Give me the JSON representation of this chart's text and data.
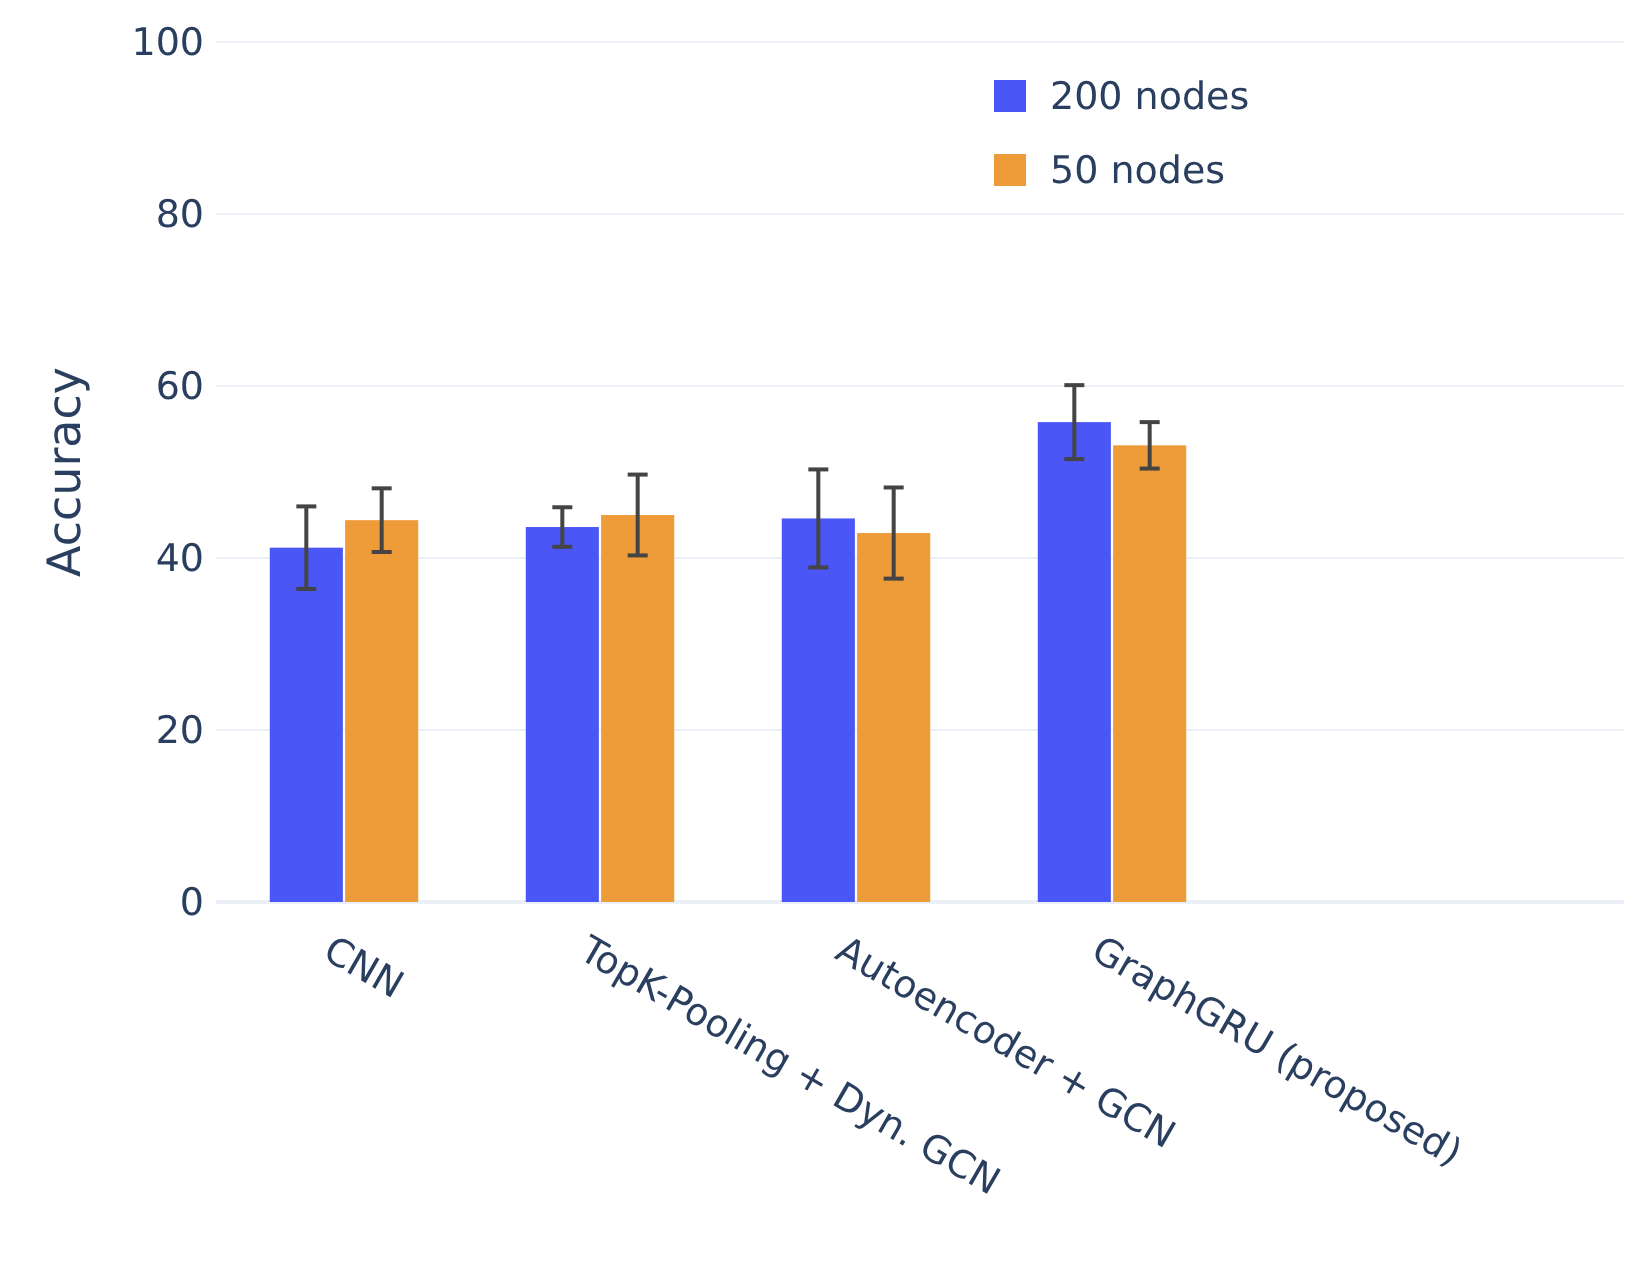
{
  "chart_data": {
    "type": "bar",
    "ylabel": "Accuracy",
    "categories": [
      "CNN",
      "TopK-Pooling + Dyn. GCN",
      "Autoencoder + GCN",
      "GraphGRU (proposed)"
    ],
    "series": [
      {
        "name": "200 nodes",
        "color": "#4a56f5",
        "values": [
          41.2,
          43.6,
          44.6,
          55.8
        ],
        "errors": [
          4.8,
          2.3,
          5.7,
          4.3
        ]
      },
      {
        "name": "50 nodes",
        "color": "#ee9b3a",
        "values": [
          44.4,
          45.0,
          42.9,
          53.1
        ],
        "errors": [
          3.7,
          4.7,
          5.3,
          2.7
        ]
      }
    ],
    "ylim": [
      0,
      100
    ],
    "yticks": [
      0,
      20,
      40,
      60,
      80,
      100
    ],
    "grid": "y",
    "legend": "top right"
  }
}
